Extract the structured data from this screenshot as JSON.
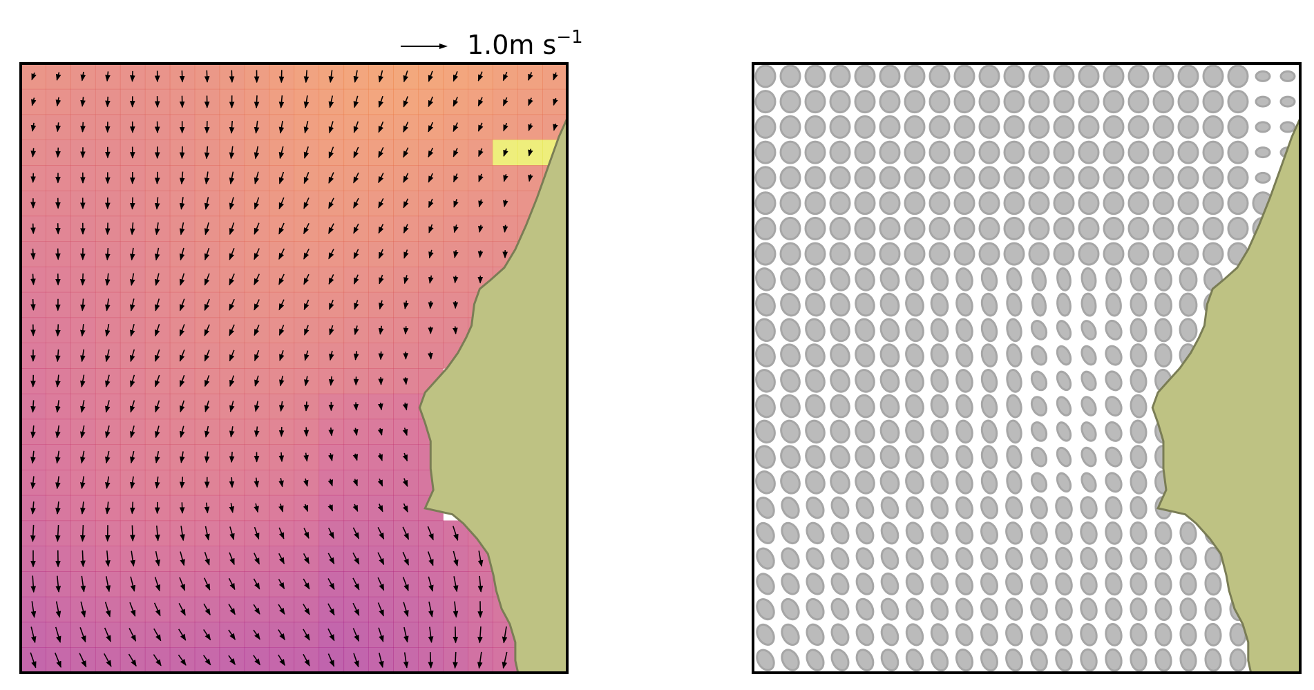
{
  "chart_data": [
    {
      "type": "heatmap",
      "overlay": "quiver",
      "title": "",
      "xlabel": "",
      "ylabel": "",
      "colormap": "plasma",
      "grid_columns": 22,
      "grid_rows": 24,
      "quiver_key": {
        "magnitude": 1.0,
        "label": "1.0m s",
        "unit_exponent": "−1"
      },
      "land_color": "#bec283",
      "land_edge_color": "#7a7d55"
    },
    {
      "type": "ellipse-grid",
      "title": "",
      "xlabel": "",
      "ylabel": "",
      "grid_columns": 22,
      "grid_rows": 24,
      "ellipse_fill": "#bbbbbb",
      "ellipse_edge": "#a6a6a6",
      "land_color": "#bec283",
      "land_edge_color": "#7a7d55"
    }
  ]
}
